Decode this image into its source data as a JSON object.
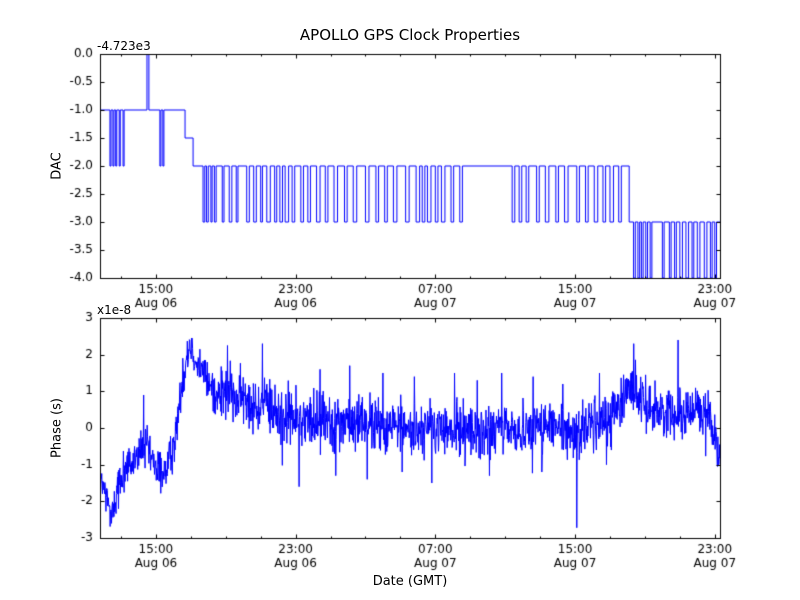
{
  "figure": {
    "background": "#ffffff",
    "axes_color": "#000000"
  },
  "chart_data": [
    {
      "type": "line",
      "title": "APOLLO GPS Clock Properties",
      "ylabel": "DAC",
      "xlabel": "",
      "offset_text": "-4.723e3",
      "color": "#0000ff",
      "xlim": [
        0,
        35.5
      ],
      "ylim": [
        -4,
        0
      ],
      "yticks": [
        0,
        -0.5,
        -1,
        -1.5,
        -2,
        -2.5,
        -3,
        -3.5,
        -4
      ],
      "ytick_labels": [
        "0.0",
        "-0.5",
        "-1.0",
        "-1.5",
        "-2.0",
        "-2.5",
        "-3.0",
        "-3.5",
        "-4.0"
      ],
      "xticks": [
        3.2,
        11.2,
        19.2,
        27.2,
        35.2
      ],
      "xtick_labels": [
        [
          "15:00",
          "Aug 06"
        ],
        [
          "23:00",
          "Aug 06"
        ],
        [
          "07:00",
          "Aug 07"
        ],
        [
          "15:00",
          "Aug 07"
        ],
        [
          "23:00",
          "Aug 07"
        ]
      ],
      "xminor_start": 1.2,
      "xminor_step": 2,
      "step_points": [
        [
          0,
          -1
        ],
        [
          0.57,
          -2
        ],
        [
          0.63,
          -1
        ],
        [
          0.74,
          -2
        ],
        [
          0.8,
          -1
        ],
        [
          0.9,
          -2
        ],
        [
          0.96,
          -1
        ],
        [
          1.1,
          -2
        ],
        [
          1.16,
          -1
        ],
        [
          1.32,
          -2
        ],
        [
          1.38,
          -1
        ],
        [
          2.69,
          0
        ],
        [
          2.8,
          -1
        ],
        [
          3.43,
          -2
        ],
        [
          3.49,
          -1
        ],
        [
          3.6,
          -2
        ],
        [
          3.66,
          -1
        ],
        [
          4.87,
          -1.5
        ],
        [
          5.33,
          -2
        ],
        [
          5.9,
          -3
        ],
        [
          6,
          -2
        ],
        [
          6.1,
          -3
        ],
        [
          6.2,
          -2
        ],
        [
          6.35,
          -3
        ],
        [
          6.42,
          -2
        ],
        [
          6.55,
          -3
        ],
        [
          6.65,
          -2
        ],
        [
          7,
          -3
        ],
        [
          7.1,
          -2
        ],
        [
          7.4,
          -3
        ],
        [
          7.55,
          -2
        ],
        [
          7.8,
          -3
        ],
        [
          7.9,
          -2
        ],
        [
          8.4,
          -3
        ],
        [
          8.55,
          -2
        ],
        [
          8.8,
          -3
        ],
        [
          8.95,
          -2
        ],
        [
          9.2,
          -3
        ],
        [
          9.3,
          -2
        ],
        [
          9.55,
          -3
        ],
        [
          9.75,
          -2
        ],
        [
          10,
          -3
        ],
        [
          10.12,
          -2
        ],
        [
          10.3,
          -3
        ],
        [
          10.45,
          -2
        ],
        [
          10.6,
          -3
        ],
        [
          10.8,
          -2
        ],
        [
          11,
          -3
        ],
        [
          11.15,
          -2
        ],
        [
          11.5,
          -3
        ],
        [
          11.65,
          -2
        ],
        [
          11.9,
          -3
        ],
        [
          12.05,
          -2
        ],
        [
          12.4,
          -3
        ],
        [
          12.6,
          -2
        ],
        [
          12.9,
          -3
        ],
        [
          13.05,
          -2
        ],
        [
          13.4,
          -3
        ],
        [
          13.6,
          -2
        ],
        [
          14,
          -3
        ],
        [
          14.15,
          -2
        ],
        [
          14.5,
          -3
        ],
        [
          14.7,
          -2
        ],
        [
          15.2,
          -3
        ],
        [
          15.4,
          -2
        ],
        [
          15.8,
          -3
        ],
        [
          15.95,
          -2
        ],
        [
          16.3,
          -3
        ],
        [
          16.45,
          -2
        ],
        [
          16.8,
          -3
        ],
        [
          17,
          -2
        ],
        [
          17.5,
          -3
        ],
        [
          17.7,
          -2
        ],
        [
          18.1,
          -3
        ],
        [
          18.3,
          -2
        ],
        [
          18.45,
          -3
        ],
        [
          18.6,
          -2
        ],
        [
          18.75,
          -3
        ],
        [
          18.95,
          -2
        ],
        [
          19.2,
          -3
        ],
        [
          19.35,
          -2
        ],
        [
          19.55,
          -3
        ],
        [
          19.75,
          -2
        ],
        [
          20.1,
          -3
        ],
        [
          20.25,
          -2
        ],
        [
          20.6,
          -3
        ],
        [
          20.75,
          -2
        ],
        [
          23.6,
          -3
        ],
        [
          23.75,
          -2
        ],
        [
          24,
          -3
        ],
        [
          24.15,
          -2
        ],
        [
          24.4,
          -3
        ],
        [
          24.55,
          -2
        ],
        [
          25,
          -3
        ],
        [
          25.15,
          -2
        ],
        [
          25.5,
          -3
        ],
        [
          25.7,
          -2
        ],
        [
          26.1,
          -3
        ],
        [
          26.25,
          -2
        ],
        [
          26.6,
          -3
        ],
        [
          26.8,
          -2
        ],
        [
          27.3,
          -3
        ],
        [
          27.45,
          -2
        ],
        [
          27.8,
          -3
        ],
        [
          27.95,
          -2
        ],
        [
          28.3,
          -3
        ],
        [
          28.5,
          -2
        ],
        [
          28.8,
          -3
        ],
        [
          28.95,
          -2
        ],
        [
          29.2,
          -3
        ],
        [
          29.4,
          -2
        ],
        [
          29.7,
          -3
        ],
        [
          29.85,
          -2
        ],
        [
          30.3,
          -3
        ],
        [
          30.55,
          -4
        ],
        [
          30.65,
          -3
        ],
        [
          30.8,
          -4
        ],
        [
          30.9,
          -3
        ],
        [
          31,
          -4
        ],
        [
          31.1,
          -3
        ],
        [
          31.25,
          -4
        ],
        [
          31.35,
          -3
        ],
        [
          31.5,
          -4
        ],
        [
          31.6,
          -3
        ],
        [
          32.2,
          -4
        ],
        [
          32.3,
          -3
        ],
        [
          32.6,
          -4
        ],
        [
          32.7,
          -3
        ],
        [
          32.9,
          -4
        ],
        [
          33,
          -3
        ],
        [
          33.2,
          -4
        ],
        [
          33.35,
          -3
        ],
        [
          33.55,
          -4
        ],
        [
          33.7,
          -3
        ],
        [
          33.9,
          -4
        ],
        [
          34,
          -3
        ],
        [
          34.2,
          -4
        ],
        [
          34.35,
          -3
        ],
        [
          34.6,
          -4
        ],
        [
          34.75,
          -3
        ],
        [
          34.95,
          -4
        ],
        [
          35.05,
          -3
        ],
        [
          35.2,
          -4
        ],
        [
          35.3,
          -3
        ]
      ]
    },
    {
      "type": "line",
      "title": "",
      "ylabel": "Phase (s)",
      "xlabel": "Date (GMT)",
      "offset_text": "x1e-8",
      "color": "#0000ff",
      "xlim": [
        0,
        35.5
      ],
      "ylim": [
        -3,
        3
      ],
      "yticks": [
        3,
        2,
        1,
        0,
        -1,
        -2,
        -3
      ],
      "ytick_labels": [
        "3",
        "2",
        "1",
        "0",
        "-1",
        "-2",
        "-3"
      ],
      "xticks": [
        3.2,
        11.2,
        19.2,
        27.2,
        35.2
      ],
      "xtick_labels": [
        [
          "15:00",
          "Aug 06"
        ],
        [
          "23:00",
          "Aug 06"
        ],
        [
          "07:00",
          "Aug 07"
        ],
        [
          "15:00",
          "Aug 07"
        ],
        [
          "23:00",
          "Aug 07"
        ]
      ],
      "xminor_start": 1.2,
      "xminor_step": 2,
      "sample_dt": 0.02,
      "seed": 12345,
      "trend": [
        [
          0,
          -1.4
        ],
        [
          0.3,
          -1.8
        ],
        [
          0.6,
          -2.3
        ],
        [
          0.9,
          -1.9
        ],
        [
          1.2,
          -1.3
        ],
        [
          1.6,
          -1
        ],
        [
          2,
          -0.9
        ],
        [
          2.4,
          -0.6
        ],
        [
          2.7,
          -0.5
        ],
        [
          3,
          -1
        ],
        [
          3.4,
          -1.2
        ],
        [
          3.8,
          -1.1
        ],
        [
          4.2,
          -0.6
        ],
        [
          4.6,
          0.8
        ],
        [
          5,
          2.1
        ],
        [
          5.2,
          2.3
        ],
        [
          5.5,
          1.9
        ],
        [
          5.8,
          1.6
        ],
        [
          6.2,
          1.2
        ],
        [
          6.6,
          1
        ],
        [
          7,
          0.9
        ],
        [
          7.5,
          1
        ],
        [
          8,
          0.8
        ],
        [
          8.5,
          0.7
        ],
        [
          9,
          0.6
        ],
        [
          9.5,
          0.6
        ],
        [
          10,
          0.4
        ],
        [
          11,
          0.3
        ],
        [
          12,
          0.2
        ],
        [
          13,
          0.3
        ],
        [
          14,
          0.1
        ],
        [
          15,
          0.2
        ],
        [
          16,
          0
        ],
        [
          17,
          0.1
        ],
        [
          18,
          -0.1
        ],
        [
          19,
          0
        ],
        [
          20,
          -0.1
        ],
        [
          21,
          0
        ],
        [
          22,
          -0.2
        ],
        [
          23,
          0
        ],
        [
          24,
          -0.1
        ],
        [
          25,
          0.1
        ],
        [
          26,
          0
        ],
        [
          27,
          -0.2
        ],
        [
          28,
          0.1
        ],
        [
          29,
          0.2
        ],
        [
          29.8,
          0.6
        ],
        [
          30.3,
          1.3
        ],
        [
          30.6,
          1
        ],
        [
          31,
          0.7
        ],
        [
          31.5,
          0.6
        ],
        [
          32,
          0.5
        ],
        [
          33,
          0.4
        ],
        [
          34,
          0.5
        ],
        [
          35,
          0.3
        ],
        [
          35.5,
          -0.8
        ]
      ],
      "noise_sd": [
        [
          0,
          0.25
        ],
        [
          4,
          0.3
        ],
        [
          5,
          0.25
        ],
        [
          7,
          0.35
        ],
        [
          10,
          0.4
        ],
        [
          20,
          0.35
        ],
        [
          30,
          0.35
        ],
        [
          35.5,
          0.3
        ]
      ],
      "spikes": [
        [
          0.65,
          -2.6
        ],
        [
          1.05,
          -2.2
        ],
        [
          2.5,
          0.9
        ],
        [
          5.25,
          2.42
        ],
        [
          7.3,
          2.25
        ],
        [
          9.3,
          2.3
        ],
        [
          11.4,
          -1.6
        ],
        [
          12.6,
          1.6
        ],
        [
          13.5,
          -1.3
        ],
        [
          14.3,
          1.7
        ],
        [
          15.3,
          -1.4
        ],
        [
          16.2,
          1.5
        ],
        [
          17.3,
          -1.2
        ],
        [
          18,
          1.4
        ],
        [
          19,
          -1.5
        ],
        [
          20.3,
          1.5
        ],
        [
          21.6,
          1.3
        ],
        [
          22.3,
          -1.3
        ],
        [
          23,
          1.5
        ],
        [
          24.8,
          1.4
        ],
        [
          25.3,
          -1.2
        ],
        [
          26.5,
          1.2
        ],
        [
          27.3,
          -2.72
        ],
        [
          28.6,
          1.5
        ],
        [
          29,
          -1
        ],
        [
          30.55,
          2.3
        ],
        [
          33.1,
          2.4
        ],
        [
          35.35,
          -1.05
        ]
      ]
    }
  ]
}
